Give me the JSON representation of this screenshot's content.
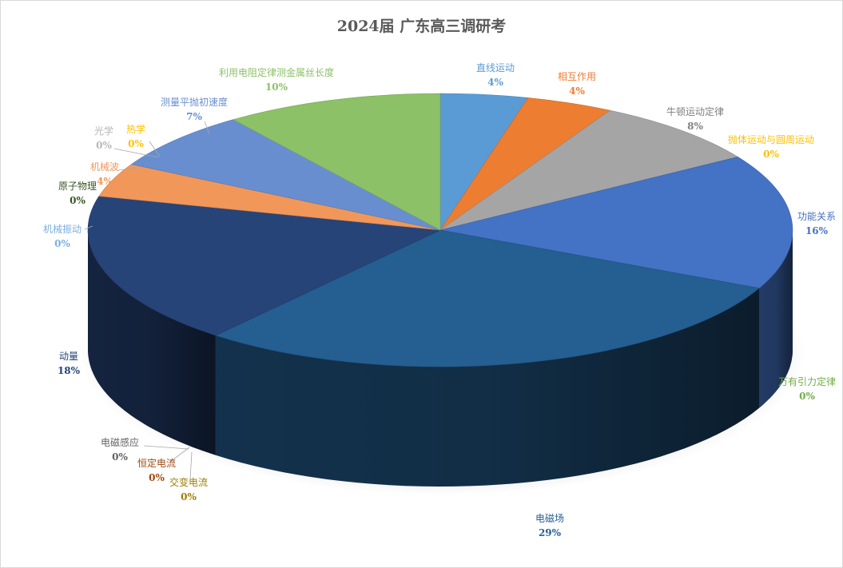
{
  "chart_data": {
    "type": "pie",
    "title": "2024届 广东高三调研考",
    "slices": [
      {
        "label": "直线运动",
        "value": 4,
        "pct_label": "4%",
        "color": "#5b9bd5"
      },
      {
        "label": "相互作用",
        "value": 4,
        "pct_label": "4%",
        "color": "#ed7d31"
      },
      {
        "label": "牛顿运动定律",
        "value": 8,
        "pct_label": "8%",
        "color": "#a5a5a5"
      },
      {
        "label": "抛体运动与圆周运动",
        "value": 0,
        "pct_label": "0%",
        "color": "#ffc000"
      },
      {
        "label": "功能关系",
        "value": 16,
        "pct_label": "16%",
        "color": "#4472c4"
      },
      {
        "label": "万有引力定律",
        "value": 0,
        "pct_label": "0%",
        "color": "#70ad47"
      },
      {
        "label": "电磁场",
        "value": 29,
        "pct_label": "29%",
        "color": "#255e91"
      },
      {
        "label": "交变电流",
        "value": 0,
        "pct_label": "0%",
        "color": "#9e7d00"
      },
      {
        "label": "恒定电流",
        "value": 0,
        "pct_label": "0%",
        "color": "#9e480e"
      },
      {
        "label": "电磁感应",
        "value": 0,
        "pct_label": "0%",
        "color": "#636363"
      },
      {
        "label": "动量",
        "value": 18,
        "pct_label": "18%",
        "color": "#264478"
      },
      {
        "label": "机械振动",
        "value": 0,
        "pct_label": "0%",
        "color": "#7cafdd"
      },
      {
        "label": "原子物理",
        "value": 0,
        "pct_label": "0%",
        "color": "#375623"
      },
      {
        "label": "机械波",
        "value": 4,
        "pct_label": "4%",
        "color": "#f1975a"
      },
      {
        "label": "热学",
        "value": 0,
        "pct_label": "0%",
        "color": "#ffcd33"
      },
      {
        "label": "光学",
        "value": 0,
        "pct_label": "0%",
        "color": "#b7b7b7"
      },
      {
        "label": "测量平抛初速度",
        "value": 7,
        "pct_label": "7%",
        "color": "#698ed0"
      },
      {
        "label": "利用电阻定律测金属丝长度",
        "value": 10,
        "pct_label": "10%",
        "color": "#8cc168"
      }
    ],
    "legend": "none",
    "three_d": true
  }
}
